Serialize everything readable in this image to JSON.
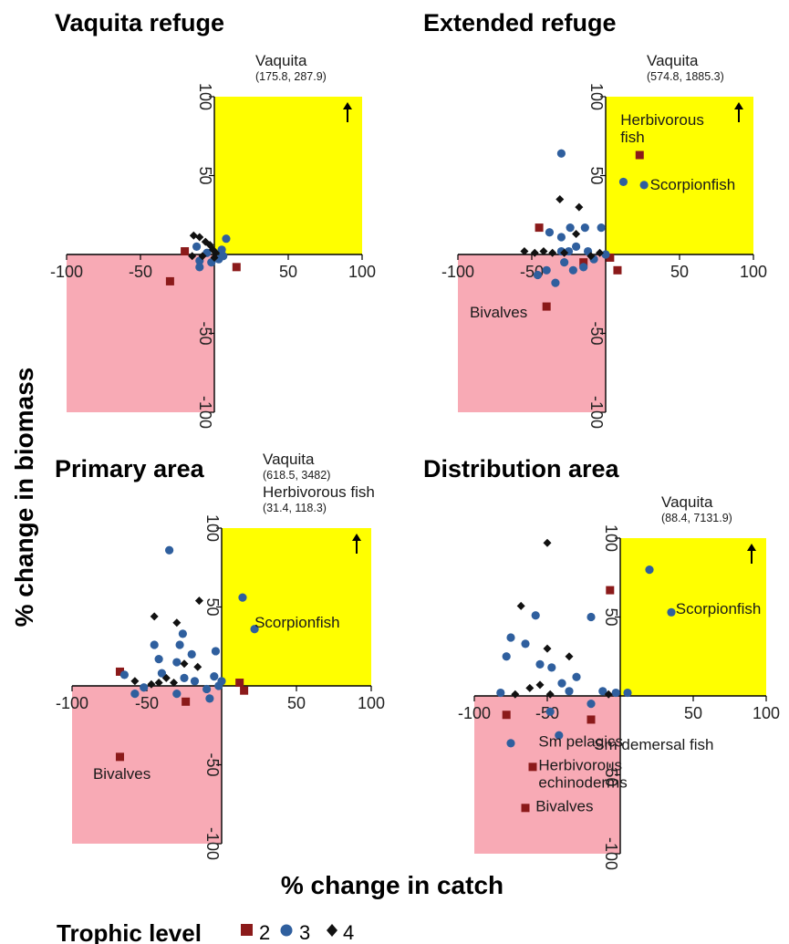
{
  "chart_data": {
    "type": "scatter",
    "xlabel": "% change in catch",
    "ylabel": "% change in biomass",
    "legend": {
      "title": "Trophic level",
      "placement": "bottom",
      "entries": [
        {
          "label": "2",
          "shape": "square",
          "color": "#8b1a1a"
        },
        {
          "label": "3",
          "shape": "circle",
          "color": "#2f5f9e"
        },
        {
          "label": "4",
          "shape": "diamond",
          "color": "#111111"
        }
      ]
    },
    "quadrant_colors": {
      "win_win": "#ffff00",
      "lose_lose": "#f8aab5"
    },
    "panels": [
      {
        "title": "Vaquita refuge",
        "xlim": [
          -100,
          100
        ],
        "ylim": [
          -100,
          100
        ],
        "ticks": [
          {
            "v": -100,
            "label": "-100"
          },
          {
            "v": -50,
            "label": "-50"
          },
          {
            "v": 50,
            "label": "50"
          },
          {
            "v": 100,
            "label": "100"
          }
        ],
        "offscale": [
          {
            "name": "Vaquita",
            "coords": "(175.8, 287.9)"
          }
        ],
        "labels": [],
        "points": [
          {
            "x": -30,
            "y": -17,
            "tl": 2
          },
          {
            "x": -20,
            "y": 2,
            "tl": 2
          },
          {
            "x": 15,
            "y": -8,
            "tl": 2
          },
          {
            "x": -12,
            "y": 5,
            "tl": 3
          },
          {
            "x": -10,
            "y": -4,
            "tl": 3
          },
          {
            "x": -10,
            "y": -8,
            "tl": 3
          },
          {
            "x": -5,
            "y": 1,
            "tl": 3
          },
          {
            "x": -2,
            "y": -5,
            "tl": 3
          },
          {
            "x": 3,
            "y": -3,
            "tl": 3
          },
          {
            "x": 5,
            "y": 3,
            "tl": 3
          },
          {
            "x": 8,
            "y": 10,
            "tl": 3
          },
          {
            "x": 6,
            "y": -1,
            "tl": 3
          },
          {
            "x": -14,
            "y": 12,
            "tl": 4
          },
          {
            "x": -10,
            "y": 11,
            "tl": 4
          },
          {
            "x": -6,
            "y": 8,
            "tl": 4
          },
          {
            "x": -3,
            "y": 6,
            "tl": 4
          },
          {
            "x": -15,
            "y": -1,
            "tl": 4
          },
          {
            "x": -8,
            "y": -1,
            "tl": 4
          },
          {
            "x": -1,
            "y": 3,
            "tl": 4
          },
          {
            "x": 1,
            "y": 1,
            "tl": 4
          },
          {
            "x": 0,
            "y": -2,
            "tl": 4
          }
        ]
      },
      {
        "title": "Extended refuge",
        "xlim": [
          -100,
          100
        ],
        "ylim": [
          -100,
          100
        ],
        "ticks": [
          {
            "v": -100,
            "label": "-100"
          },
          {
            "v": -50,
            "label": "-50"
          },
          {
            "v": 50,
            "label": "50"
          },
          {
            "v": 100,
            "label": "100"
          }
        ],
        "offscale": [
          {
            "name": "Vaquita",
            "coords": "(574.8, 1885.3)"
          }
        ],
        "labels": [
          {
            "text": "Herbivorous",
            "x": 10,
            "y": 82
          },
          {
            "text": "fish",
            "x": 10,
            "y": 71
          },
          {
            "text": "Scorpionfish",
            "x": 30,
            "y": 41
          },
          {
            "text": "Bivalves",
            "x": -92,
            "y": -40
          }
        ],
        "points": [
          {
            "x": 23,
            "y": 63,
            "tl": 2
          },
          {
            "x": -45,
            "y": 17,
            "tl": 2
          },
          {
            "x": -40,
            "y": -33,
            "tl": 2
          },
          {
            "x": -15,
            "y": -5,
            "tl": 2
          },
          {
            "x": 3,
            "y": -2,
            "tl": 2
          },
          {
            "x": 8,
            "y": -10,
            "tl": 2
          },
          {
            "x": -30,
            "y": 64,
            "tl": 3
          },
          {
            "x": 12,
            "y": 46,
            "tl": 3
          },
          {
            "x": 26,
            "y": 44,
            "tl": 3
          },
          {
            "x": -38,
            "y": 14,
            "tl": 3
          },
          {
            "x": -30,
            "y": 11,
            "tl": 3
          },
          {
            "x": -24,
            "y": 17,
            "tl": 3
          },
          {
            "x": -14,
            "y": 17,
            "tl": 3
          },
          {
            "x": -3,
            "y": 17,
            "tl": 3
          },
          {
            "x": -30,
            "y": 2,
            "tl": 3
          },
          {
            "x": -25,
            "y": 2,
            "tl": 3
          },
          {
            "x": -20,
            "y": 5,
            "tl": 3
          },
          {
            "x": -12,
            "y": 2,
            "tl": 3
          },
          {
            "x": -40,
            "y": -10,
            "tl": 3
          },
          {
            "x": -28,
            "y": -5,
            "tl": 3
          },
          {
            "x": -15,
            "y": -8,
            "tl": 3
          },
          {
            "x": -8,
            "y": -3,
            "tl": 3
          },
          {
            "x": 0,
            "y": 0,
            "tl": 3
          },
          {
            "x": -46,
            "y": -13,
            "tl": 3
          },
          {
            "x": -34,
            "y": -18,
            "tl": 3
          },
          {
            "x": -22,
            "y": -10,
            "tl": 3
          },
          {
            "x": -31,
            "y": 35,
            "tl": 4
          },
          {
            "x": -18,
            "y": 30,
            "tl": 4
          },
          {
            "x": -20,
            "y": 13,
            "tl": 4
          },
          {
            "x": -55,
            "y": 2,
            "tl": 4
          },
          {
            "x": -48,
            "y": 1,
            "tl": 4
          },
          {
            "x": -42,
            "y": 2,
            "tl": 4
          },
          {
            "x": -36,
            "y": 1,
            "tl": 4
          },
          {
            "x": -28,
            "y": 1,
            "tl": 4
          },
          {
            "x": -10,
            "y": -1,
            "tl": 4
          },
          {
            "x": -4,
            "y": 1,
            "tl": 4
          }
        ]
      },
      {
        "title": "Primary area",
        "xlim": [
          -100,
          100
        ],
        "ylim": [
          -100,
          100
        ],
        "ticks": [
          {
            "v": -100,
            "label": "-100"
          },
          {
            "v": -50,
            "label": "-50"
          },
          {
            "v": 50,
            "label": "50"
          },
          {
            "v": 100,
            "label": "100"
          }
        ],
        "offscale": [
          {
            "name": "Vaquita",
            "coords": "(618.5, 3482)"
          },
          {
            "name": "Herbivorous fish",
            "coords": "(31.4, 118.3)"
          }
        ],
        "labels": [
          {
            "text": "Scorpionfish",
            "x": 22,
            "y": 37
          },
          {
            "text": "Bivalves",
            "x": -86,
            "y": -59
          }
        ],
        "points": [
          {
            "x": -68,
            "y": 9,
            "tl": 2
          },
          {
            "x": -24,
            "y": -10,
            "tl": 2
          },
          {
            "x": 12,
            "y": 2,
            "tl": 2
          },
          {
            "x": 15,
            "y": -3,
            "tl": 2
          },
          {
            "x": -68,
            "y": -45,
            "tl": 2
          },
          {
            "x": -35,
            "y": 86,
            "tl": 3
          },
          {
            "x": 14,
            "y": 56,
            "tl": 3
          },
          {
            "x": 22,
            "y": 36,
            "tl": 3
          },
          {
            "x": -26,
            "y": 33,
            "tl": 3
          },
          {
            "x": -45,
            "y": 26,
            "tl": 3
          },
          {
            "x": -28,
            "y": 26,
            "tl": 3
          },
          {
            "x": -4,
            "y": 22,
            "tl": 3
          },
          {
            "x": -20,
            "y": 20,
            "tl": 3
          },
          {
            "x": -42,
            "y": 17,
            "tl": 3
          },
          {
            "x": -30,
            "y": 15,
            "tl": 3
          },
          {
            "x": -40,
            "y": 8,
            "tl": 3
          },
          {
            "x": -25,
            "y": 5,
            "tl": 3
          },
          {
            "x": -18,
            "y": 3,
            "tl": 3
          },
          {
            "x": -5,
            "y": 6,
            "tl": 3
          },
          {
            "x": -2,
            "y": 0,
            "tl": 3
          },
          {
            "x": -10,
            "y": -2,
            "tl": 3
          },
          {
            "x": -65,
            "y": 7,
            "tl": 3
          },
          {
            "x": -58,
            "y": -5,
            "tl": 3
          },
          {
            "x": -52,
            "y": -1,
            "tl": 3
          },
          {
            "x": -30,
            "y": -5,
            "tl": 3
          },
          {
            "x": -8,
            "y": -8,
            "tl": 3
          },
          {
            "x": 0,
            "y": 3,
            "tl": 3
          },
          {
            "x": -15,
            "y": 54,
            "tl": 4
          },
          {
            "x": -45,
            "y": 44,
            "tl": 4
          },
          {
            "x": -30,
            "y": 40,
            "tl": 4
          },
          {
            "x": -25,
            "y": 14,
            "tl": 4
          },
          {
            "x": -16,
            "y": 12,
            "tl": 4
          },
          {
            "x": -42,
            "y": 2,
            "tl": 4
          },
          {
            "x": -37,
            "y": 5,
            "tl": 4
          },
          {
            "x": -32,
            "y": 2,
            "tl": 4
          },
          {
            "x": -58,
            "y": 3,
            "tl": 4
          },
          {
            "x": -47,
            "y": 1,
            "tl": 4
          }
        ]
      },
      {
        "title": "Distribution area",
        "xlim": [
          -100,
          100
        ],
        "ylim": [
          -100,
          100
        ],
        "ticks": [
          {
            "v": -100,
            "label": "-100"
          },
          {
            "v": -50,
            "label": "-50"
          },
          {
            "v": 50,
            "label": "50"
          },
          {
            "v": 100,
            "label": "100"
          }
        ],
        "offscale": [
          {
            "name": "Vaquita",
            "coords": "(88.4, 7131.9)"
          }
        ],
        "labels": [
          {
            "text": "Scorpionfish",
            "x": 38,
            "y": 52
          },
          {
            "text": "Sm pelagics",
            "x": -56,
            "y": -32
          },
          {
            "text": "Sm demersal fish",
            "x": -18,
            "y": -34
          },
          {
            "text": "Herbivorous",
            "x": -56,
            "y": -47
          },
          {
            "text": "echinoderms",
            "x": -56,
            "y": -58
          },
          {
            "text": "Bivalves",
            "x": -58,
            "y": -73
          }
        ],
        "points": [
          {
            "x": -7,
            "y": 67,
            "tl": 2
          },
          {
            "x": -78,
            "y": -12,
            "tl": 2
          },
          {
            "x": -60,
            "y": -45,
            "tl": 2
          },
          {
            "x": -65,
            "y": -71,
            "tl": 2
          },
          {
            "x": -20,
            "y": -15,
            "tl": 2
          },
          {
            "x": 20,
            "y": 80,
            "tl": 3
          },
          {
            "x": 35,
            "y": 53,
            "tl": 3
          },
          {
            "x": -20,
            "y": 50,
            "tl": 3
          },
          {
            "x": -58,
            "y": 51,
            "tl": 3
          },
          {
            "x": -75,
            "y": 37,
            "tl": 3
          },
          {
            "x": -65,
            "y": 33,
            "tl": 3
          },
          {
            "x": -55,
            "y": 20,
            "tl": 3
          },
          {
            "x": -78,
            "y": 25,
            "tl": 3
          },
          {
            "x": -47,
            "y": 18,
            "tl": 3
          },
          {
            "x": -30,
            "y": 12,
            "tl": 3
          },
          {
            "x": -40,
            "y": 8,
            "tl": 3
          },
          {
            "x": -82,
            "y": 2,
            "tl": 3
          },
          {
            "x": -35,
            "y": 3,
            "tl": 3
          },
          {
            "x": -12,
            "y": 3,
            "tl": 3
          },
          {
            "x": -3,
            "y": 2,
            "tl": 3
          },
          {
            "x": 5,
            "y": 2,
            "tl": 3
          },
          {
            "x": -48,
            "y": -10,
            "tl": 3
          },
          {
            "x": -20,
            "y": -5,
            "tl": 3
          },
          {
            "x": -75,
            "y": -30,
            "tl": 3
          },
          {
            "x": -42,
            "y": -25,
            "tl": 3
          },
          {
            "x": -50,
            "y": 97,
            "tl": 4
          },
          {
            "x": -68,
            "y": 57,
            "tl": 4
          },
          {
            "x": -35,
            "y": 25,
            "tl": 4
          },
          {
            "x": -50,
            "y": 30,
            "tl": 4
          },
          {
            "x": -55,
            "y": 7,
            "tl": 4
          },
          {
            "x": -62,
            "y": 5,
            "tl": 4
          },
          {
            "x": -72,
            "y": 1,
            "tl": 4
          },
          {
            "x": -48,
            "y": 1,
            "tl": 4
          },
          {
            "x": -8,
            "y": 1,
            "tl": 4
          }
        ]
      }
    ]
  }
}
